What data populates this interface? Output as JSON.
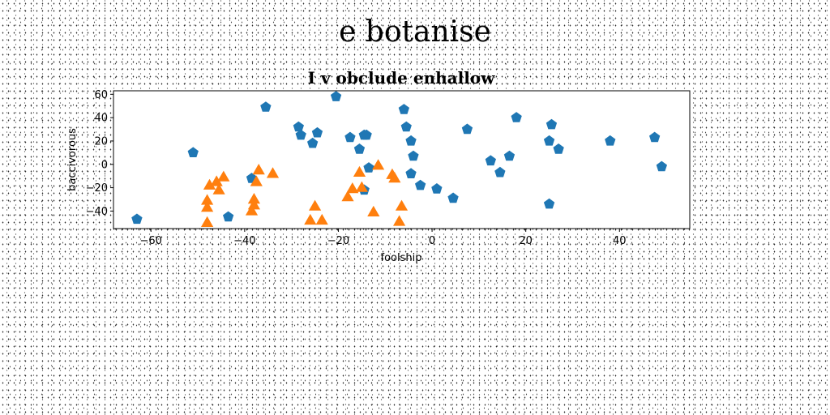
{
  "figure": {
    "suptitle": "e botanise"
  },
  "chart_data": {
    "type": "scatter",
    "title": "I v obclude enhallow",
    "xlabel": "foolship",
    "ylabel": "baccivorous",
    "xlim": [
      -68,
      55
    ],
    "ylim": [
      -55,
      63
    ],
    "xticks": [
      -60,
      -40,
      -20,
      0,
      20,
      40
    ],
    "yticks": [
      -40,
      -20,
      0,
      20,
      40,
      60
    ],
    "grid": false,
    "series": [
      {
        "marker": "pentagon",
        "color": "#1f77b4",
        "x": [
          -63,
          -51,
          -43.5,
          -38.5,
          -35.5,
          -28.5,
          -28,
          -25.5,
          -24.5,
          -17.5,
          -15.5,
          -14.5,
          -14,
          -13.5,
          -14.5,
          -20.5,
          -6,
          -5.5,
          -4.5,
          -4,
          -4.5,
          -2.5,
          1,
          4.5,
          7.5,
          12.5,
          14.5,
          16.5,
          18,
          25,
          25.5,
          25,
          27,
          38,
          47.5,
          49
        ],
        "y": [
          -47,
          10,
          -45,
          -12,
          49,
          32,
          25,
          18,
          27,
          23,
          13,
          25,
          25,
          -3,
          -22,
          58,
          47,
          32,
          20,
          7,
          -8,
          -18,
          -21,
          -29,
          30,
          3,
          -7,
          7,
          40,
          20,
          34,
          -34,
          13,
          20,
          23,
          -2
        ]
      },
      {
        "marker": "triangle",
        "color": "#ff7f0e",
        "x": [
          -48,
          -48,
          -48,
          -47.5,
          -46,
          -45.5,
          -44.5,
          -38.5,
          -38,
          -38,
          -37.5,
          -37,
          -34,
          -26,
          -25,
          -23.5,
          -18,
          -17,
          -15.5,
          -15,
          -12.5,
          -11.5,
          -8.5,
          -8,
          -7,
          -6.5
        ],
        "y": [
          -50,
          -37,
          -31,
          -18,
          -15,
          -22,
          -11,
          -40,
          -30,
          -35,
          -15,
          -5,
          -8,
          -48,
          -36,
          -48,
          -28,
          -21,
          -7,
          -20,
          -41,
          -1,
          -9,
          -12,
          -49,
          -36
        ]
      }
    ]
  }
}
